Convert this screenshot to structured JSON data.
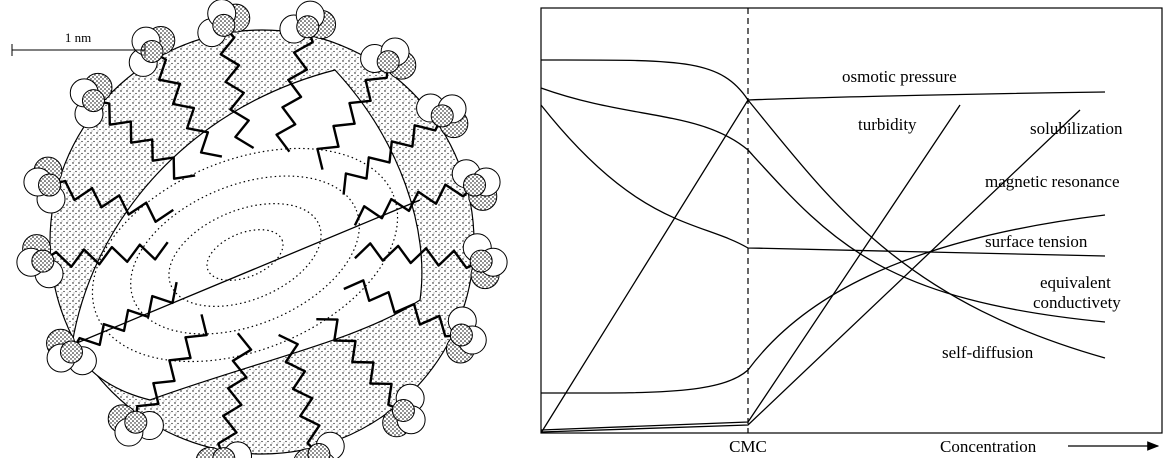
{
  "scale_bar": {
    "label": "1 nm"
  },
  "plot": {
    "curve_labels": [
      "osmotic pressure",
      "turbidity",
      "solubilization",
      "magnetic resonance",
      "surface tension",
      "equivalent",
      "conductivety",
      "self-diffusion"
    ],
    "cmc_label": "CMC",
    "x_axis_label": "Concentration"
  }
}
